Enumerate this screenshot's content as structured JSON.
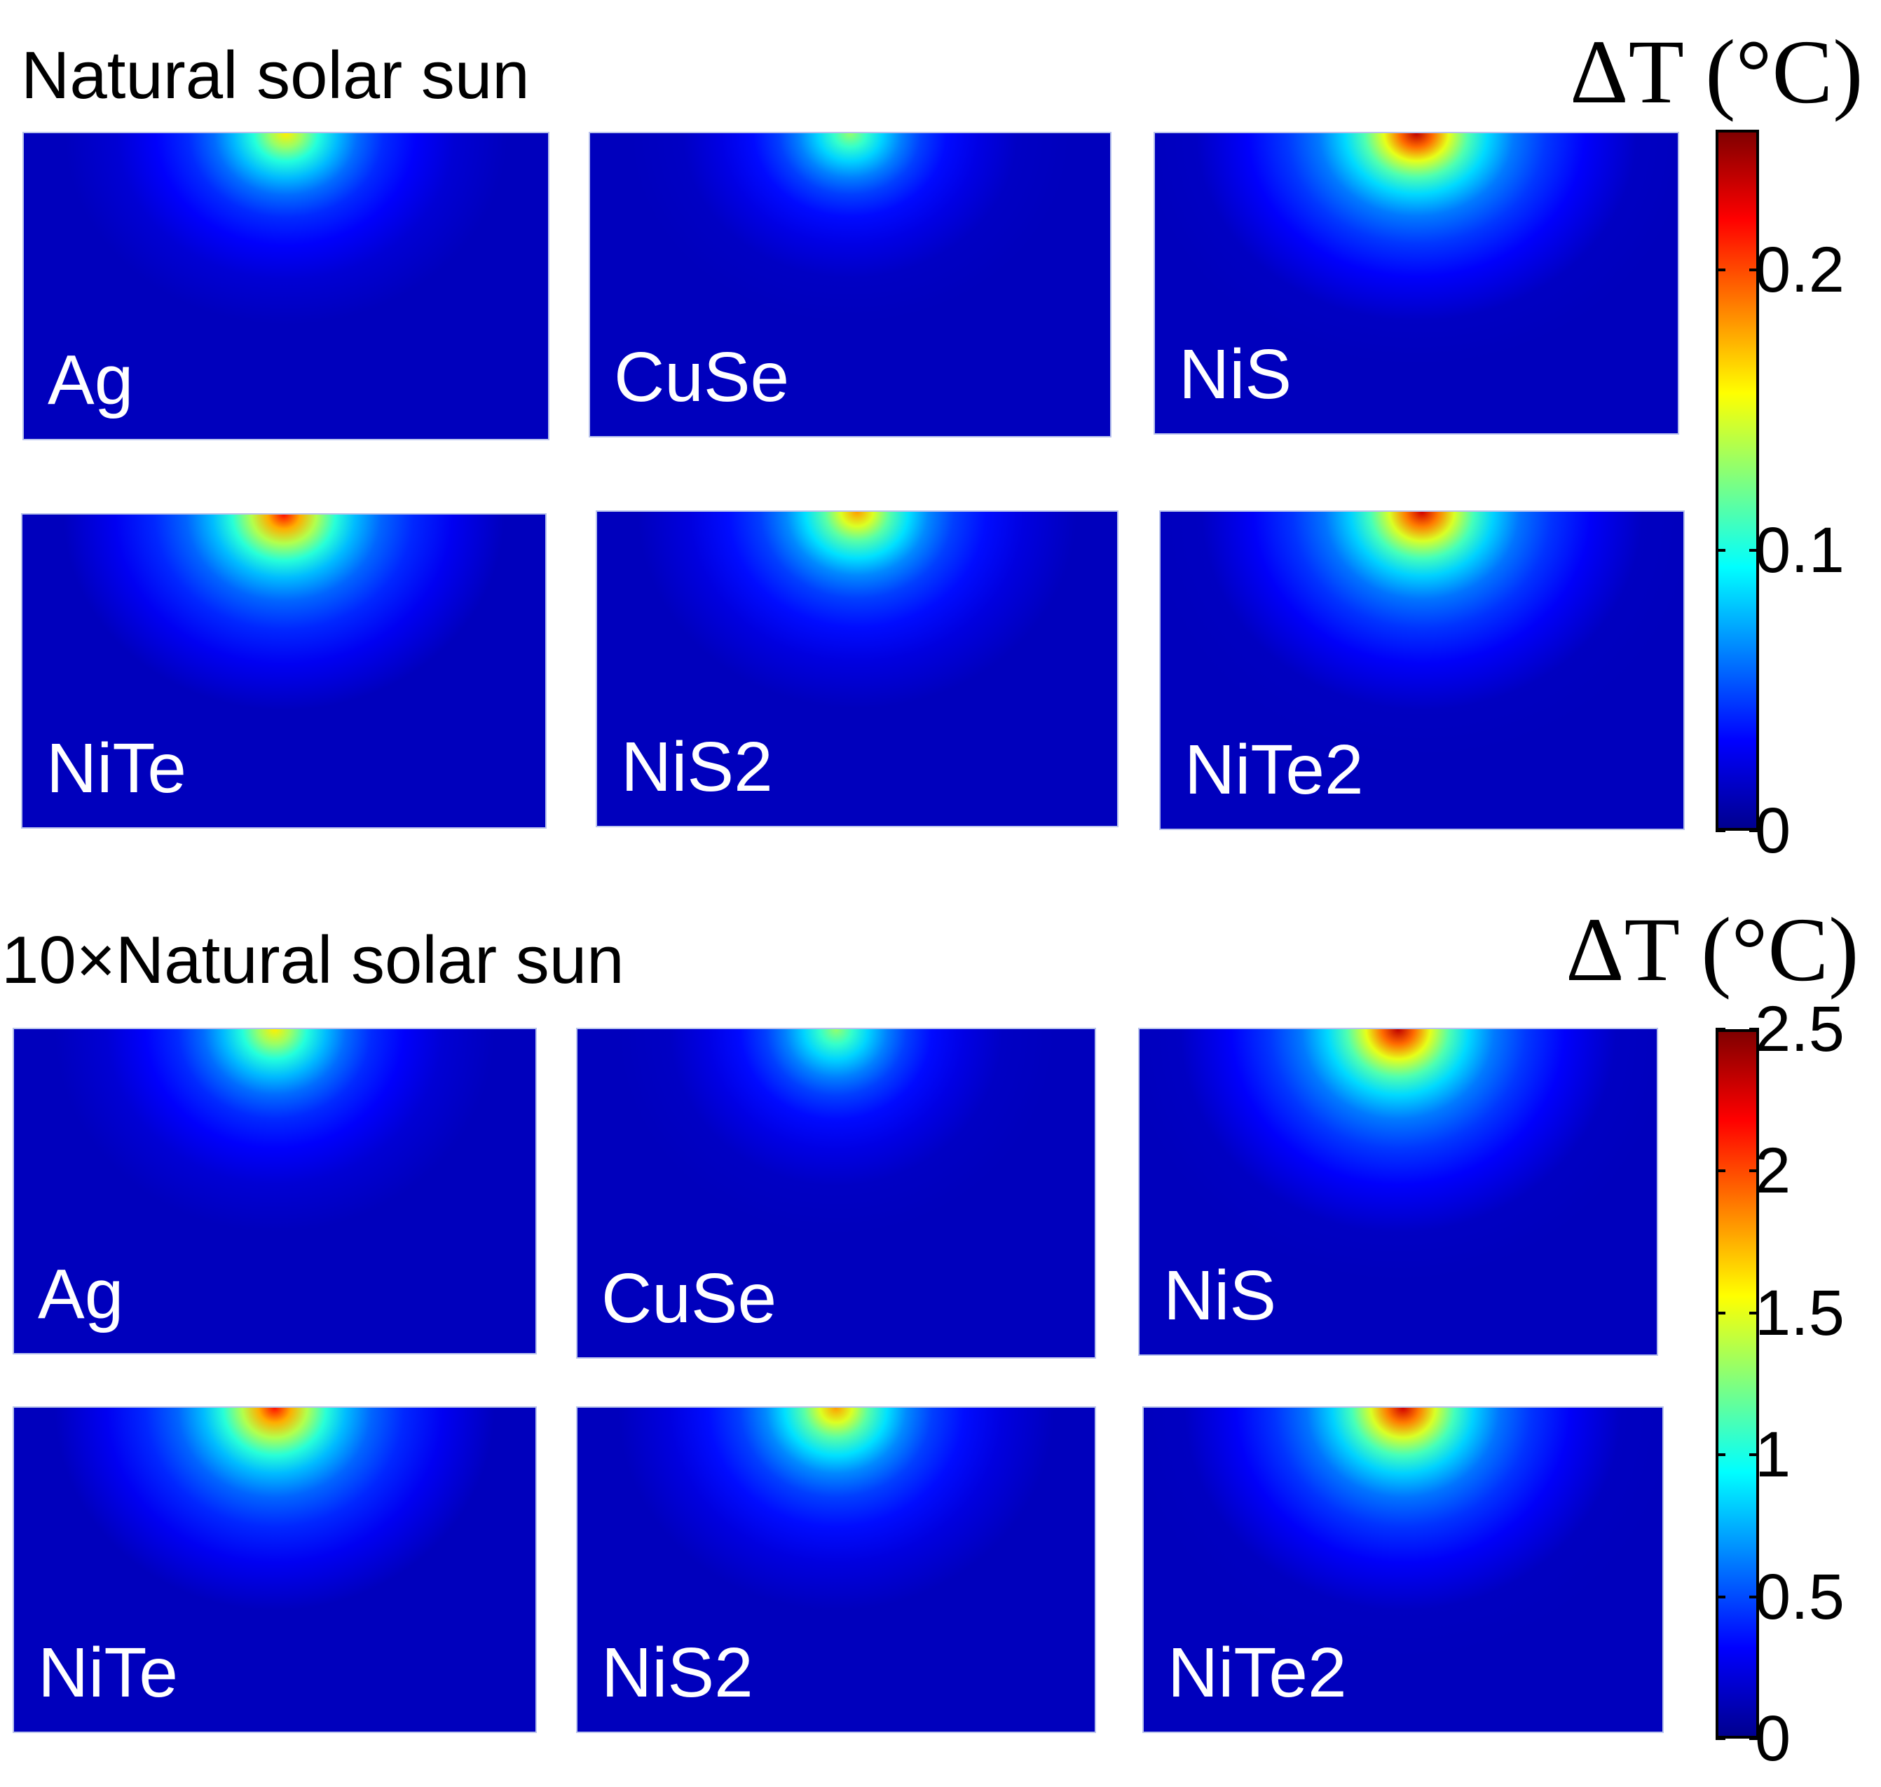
{
  "chart_data": [
    {
      "type": "heatmap",
      "title": "Natural solar sun",
      "colorbar_label": "ΔT (°C)",
      "colorbar_range": [
        0,
        0.25
      ],
      "colorbar_ticks": [
        {
          "value": 0,
          "label": "0"
        },
        {
          "value": 0.1,
          "label": "0.1"
        },
        {
          "value": 0.2,
          "label": "0.2"
        }
      ],
      "panels": [
        {
          "label": "Ag",
          "max_value": 0.16
        },
        {
          "label": "CuSe",
          "max_value": 0.13
        },
        {
          "label": "NiS",
          "max_value": 0.235
        },
        {
          "label": "NiTe",
          "max_value": 0.215
        },
        {
          "label": "NiS2",
          "max_value": 0.18
        },
        {
          "label": "NiTe2",
          "max_value": 0.23
        }
      ]
    },
    {
      "type": "heatmap",
      "title": "10×Natural solar sun",
      "colorbar_label": "ΔT (°C)",
      "colorbar_range": [
        0,
        2.5
      ],
      "colorbar_ticks": [
        {
          "value": 0,
          "label": "0"
        },
        {
          "value": 0.5,
          "label": "0.5"
        },
        {
          "value": 1,
          "label": "1"
        },
        {
          "value": 1.5,
          "label": "1.5"
        },
        {
          "value": 2,
          "label": "2"
        },
        {
          "value": 2.5,
          "label": "2.5"
        }
      ],
      "panels": [
        {
          "label": "Ag",
          "max_value": 1.6
        },
        {
          "label": "CuSe",
          "max_value": 1.3
        },
        {
          "label": "NiS",
          "max_value": 2.35
        },
        {
          "label": "NiTe",
          "max_value": 2.15
        },
        {
          "label": "NiS2",
          "max_value": 1.8
        },
        {
          "label": "NiTe2",
          "max_value": 2.3
        }
      ]
    }
  ]
}
